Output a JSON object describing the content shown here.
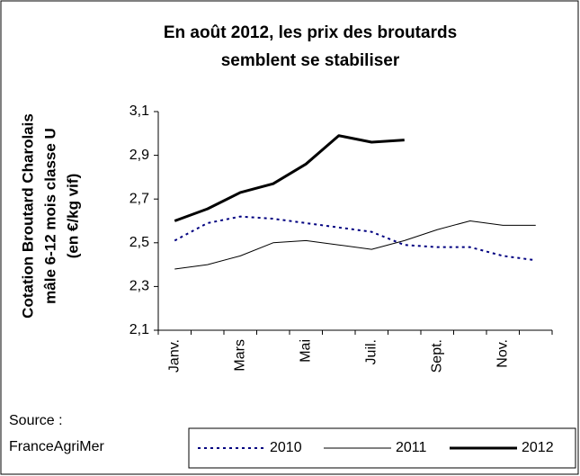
{
  "chart_data": {
    "type": "line",
    "title": [
      "En août 2012, les prix des broutards",
      "semblent se stabiliser"
    ],
    "y_label": [
      "Cotation Broutard Charolais",
      "mâle 6-12 mois classe U",
      "(en €/kg vif)"
    ],
    "source": [
      "Source :",
      "FranceAgriMer"
    ],
    "categories": [
      "Janv.",
      null,
      "Mars",
      null,
      "Mai",
      null,
      "Juil.",
      null,
      "Sept.",
      null,
      "Nov.",
      null
    ],
    "series": [
      {
        "name": "2010",
        "color": "#000080",
        "line_style": "dotted",
        "line_width": 2,
        "values": [
          2.51,
          2.59,
          2.62,
          2.61,
          2.59,
          2.57,
          2.55,
          2.49,
          2.48,
          2.48,
          2.44,
          2.42
        ]
      },
      {
        "name": "2011",
        "color": "#000000",
        "line_style": "solid",
        "line_width": 1,
        "values": [
          2.38,
          2.4,
          2.44,
          2.5,
          2.51,
          2.49,
          2.47,
          2.51,
          2.56,
          2.6,
          2.58,
          2.58
        ]
      },
      {
        "name": "2012",
        "color": "#000000",
        "line_style": "solid",
        "line_width": 3,
        "values": [
          2.6,
          2.655,
          2.73,
          2.77,
          2.86,
          2.99,
          2.96,
          2.97,
          null,
          null,
          null,
          null
        ]
      }
    ],
    "ylim": [
      2.1,
      3.1
    ],
    "yticks": [
      {
        "value": 2.1,
        "label": "2,1"
      },
      {
        "value": 2.3,
        "label": "2,3"
      },
      {
        "value": 2.5,
        "label": "2,5"
      },
      {
        "value": 2.7,
        "label": "2,7"
      },
      {
        "value": 2.9,
        "label": "2,9"
      },
      {
        "value": 3.1,
        "label": "3,1"
      }
    ],
    "grid": false
  }
}
